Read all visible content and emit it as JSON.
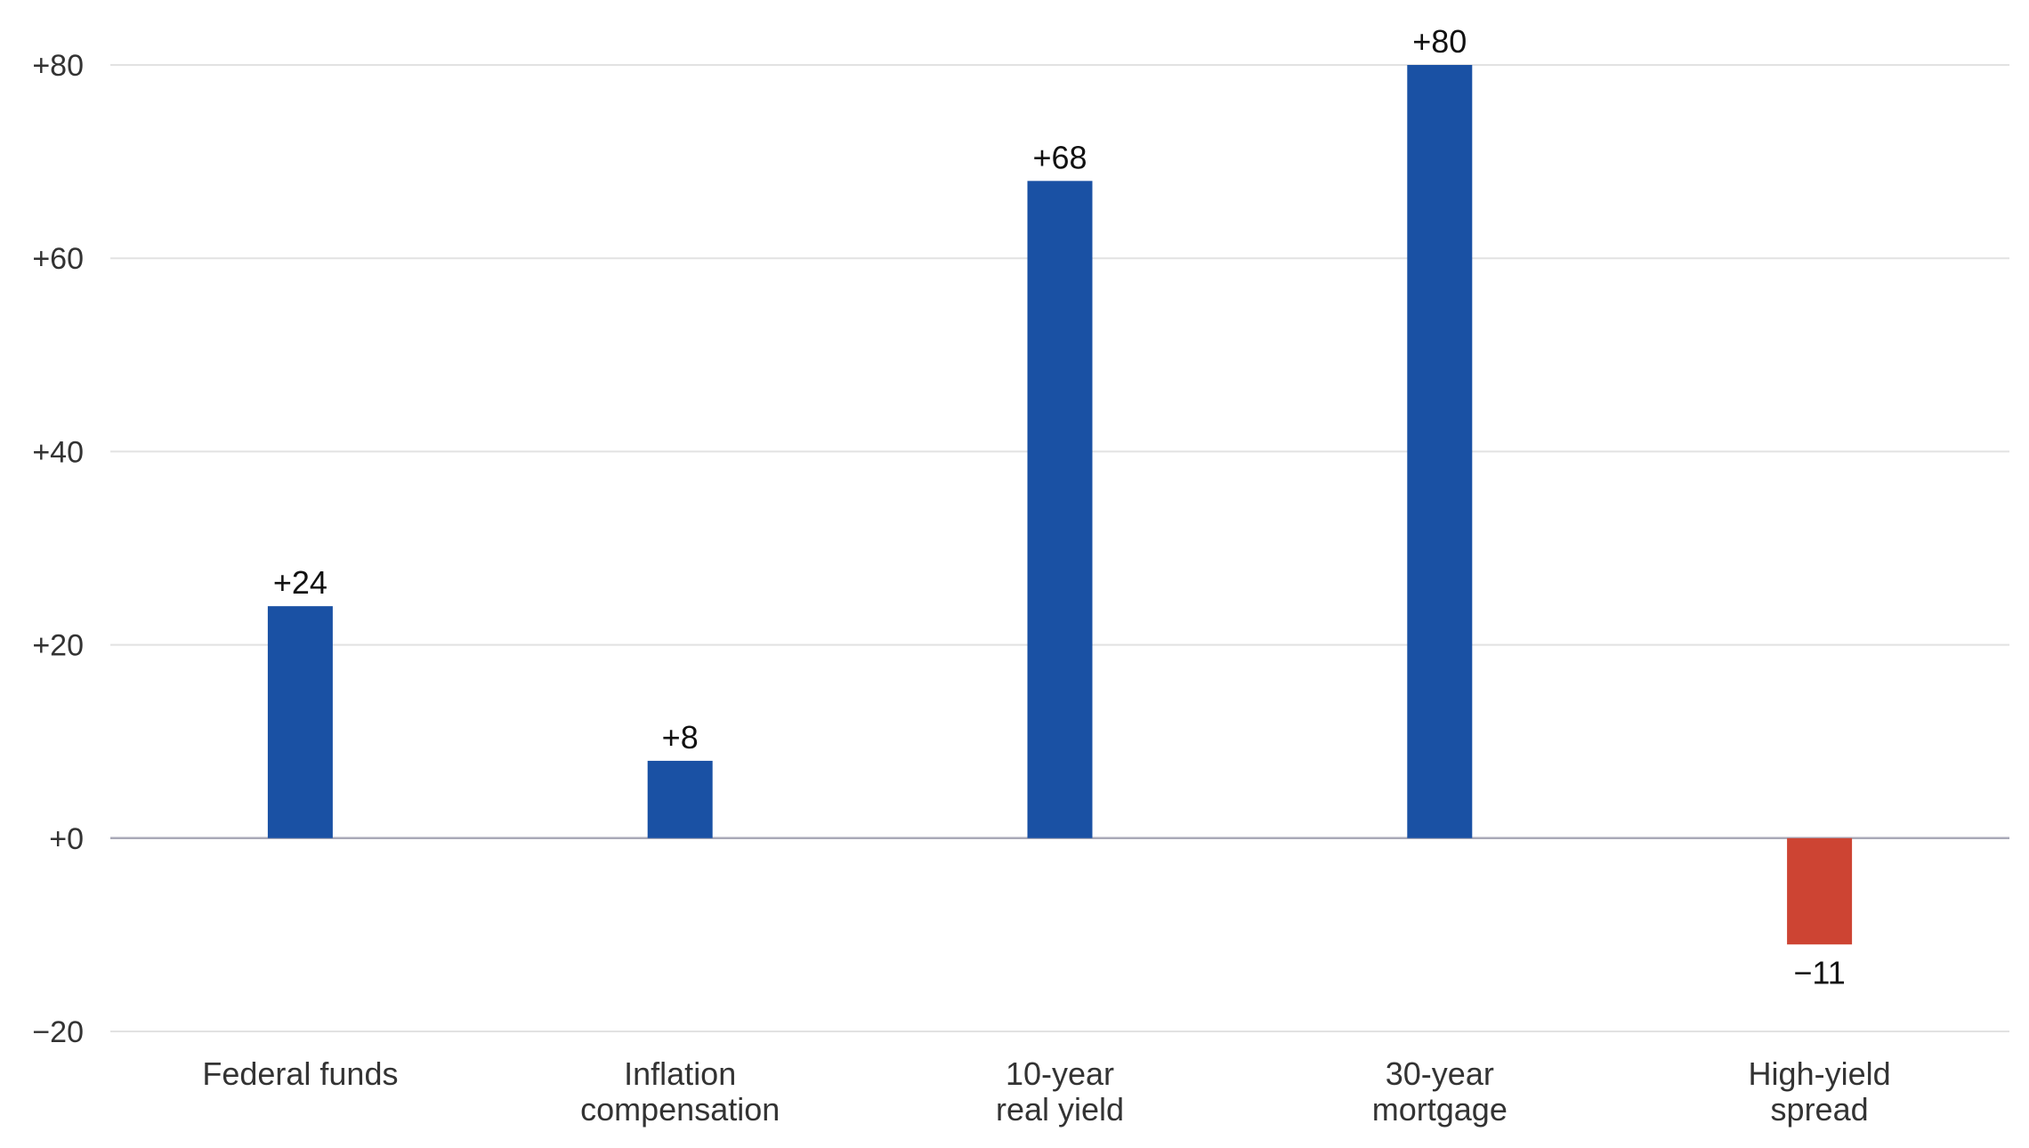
{
  "chart_data": {
    "type": "bar",
    "categories": [
      [
        "Federal funds"
      ],
      [
        "Inflation",
        "compensation"
      ],
      [
        "10-year",
        "real yield"
      ],
      [
        "30-year",
        "mortgage"
      ],
      [
        "High-yield",
        "spread"
      ]
    ],
    "values": [
      24,
      8,
      68,
      80,
      -11
    ],
    "data_labels": [
      "+24",
      "+8",
      "+68",
      "+80",
      "−11"
    ],
    "yticks": [
      80,
      60,
      40,
      20,
      0,
      -20
    ],
    "ytick_labels": [
      "+80",
      "+60",
      "+40",
      "+20",
      "+0",
      "−20"
    ],
    "ylim": [
      -20,
      80
    ],
    "grid": true,
    "legend": "none",
    "title": "",
    "xlabel": "",
    "ylabel": "",
    "colors": {
      "positive": "#1a51a4",
      "negative": "#cd4433"
    }
  }
}
